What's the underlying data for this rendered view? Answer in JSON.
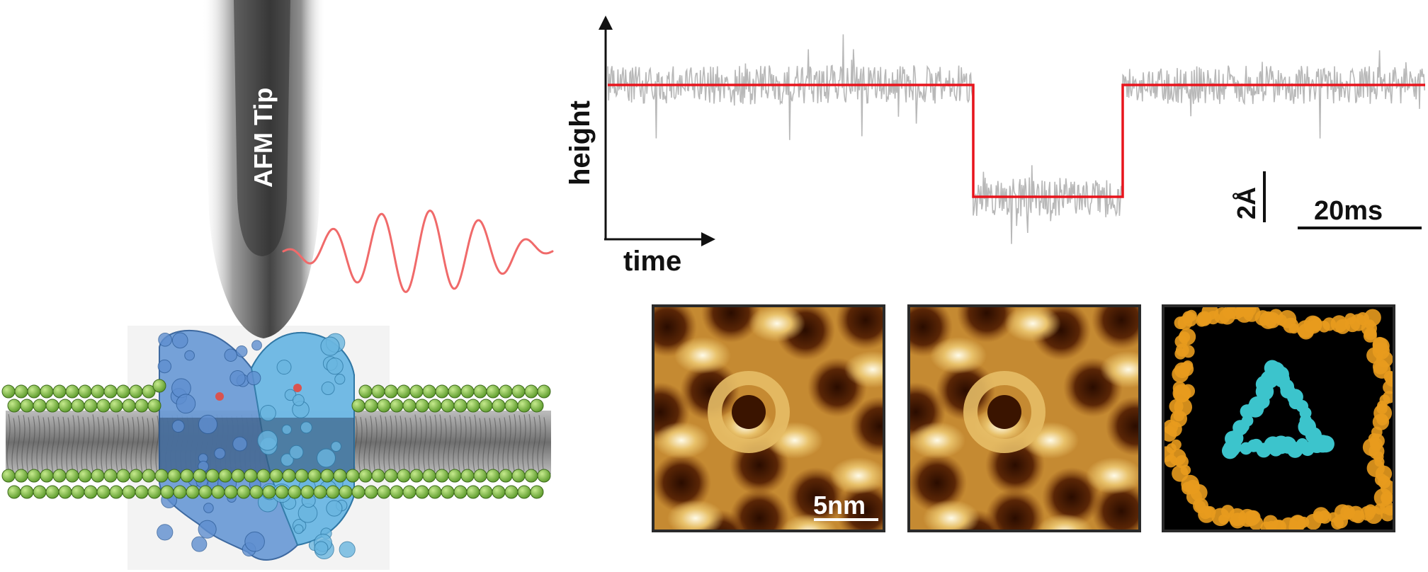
{
  "tip": {
    "label": "AFM Tip"
  },
  "trace": {
    "y_axis_label": "height",
    "x_axis_label": "time",
    "height_scale_label": "2Å",
    "time_scale_label": "20ms",
    "fit_color": "#e8141c",
    "raw_color": "#b8b8b8"
  },
  "afm_images": {
    "scale_label": "5nm"
  },
  "colors": {
    "lipid_head": "#7fbf3f",
    "protein_a": "#5f8fd0",
    "protein_b": "#6ab6e0",
    "oscillation": "#f06a6a",
    "afm_dark": "#3a1400",
    "afm_bright": "#fffbe8",
    "model_gold": "#e89b1e",
    "model_cyan": "#3cc4cc"
  }
}
